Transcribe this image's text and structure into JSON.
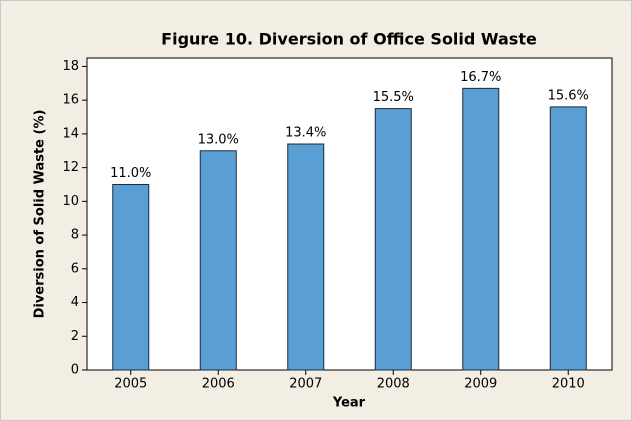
{
  "chart_data": {
    "type": "bar",
    "title": "Figure 10. Diversion of Office Solid Waste",
    "x_label": "Year",
    "y_label": "Diversion of Solid Waste (%)",
    "categories": [
      "2005",
      "2006",
      "2007",
      "2008",
      "2009",
      "2010"
    ],
    "values": [
      11.0,
      13.0,
      13.4,
      15.5,
      16.7,
      15.6
    ],
    "value_labels": [
      "11.0%",
      "13.0%",
      "13.4%",
      "15.5%",
      "16.7%",
      "15.6%"
    ],
    "color": "#5a9fd4",
    "ylim": [
      0,
      18.5
    ],
    "yticks": [
      0,
      2,
      4,
      6,
      8,
      10,
      12,
      14,
      16,
      18
    ],
    "grid": false
  }
}
